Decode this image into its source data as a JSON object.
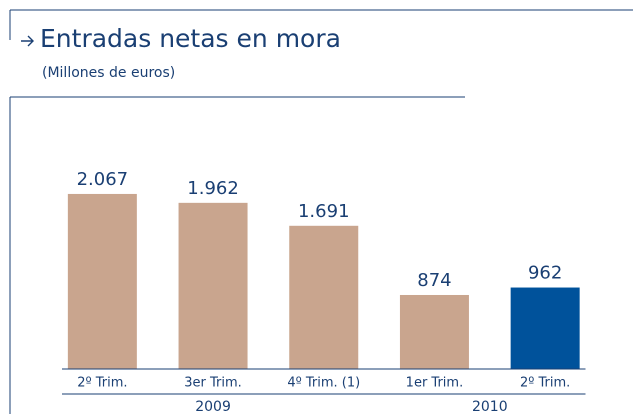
{
  "chart_data": {
    "type": "bar",
    "title": "Entradas netas en mora",
    "subtitle": "(Millones de euros)",
    "categories": [
      "2º Trim.",
      "3er Trim.",
      "4º Trim. (1)",
      "1er Trim.",
      "2º Trim."
    ],
    "values": [
      2067,
      1962,
      1691,
      874,
      962
    ],
    "value_labels": [
      "2.067",
      "1.962",
      "1.691",
      "874",
      "962"
    ],
    "colors": [
      "#c9a58e",
      "#c9a58e",
      "#c9a58e",
      "#c9a58e",
      "#00529b"
    ],
    "groups": [
      {
        "label": "2009",
        "span": 3
      },
      {
        "label": "2010",
        "span": 2
      }
    ],
    "ylim": [
      0,
      3200
    ]
  }
}
